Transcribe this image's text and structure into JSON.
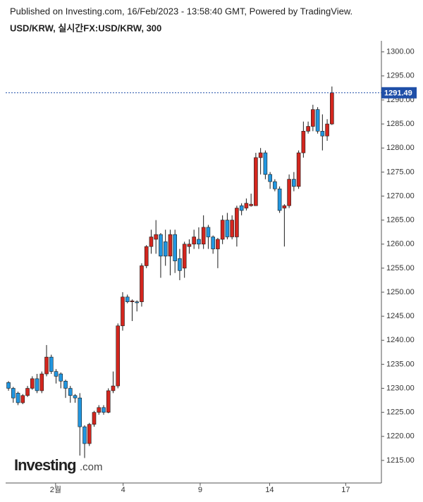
{
  "chart_data": {
    "type": "candlestick",
    "title": "Published on Investing.com, 16/Feb/2023 - 13:58:40 GMT, Powered by TradingView.",
    "subtitle": "USD/KRW, 실시간FX:USD/KRW, 300",
    "watermark": {
      "brand": "Investing",
      "suffix": ".com"
    },
    "up_color": "#d3261e",
    "down_color": "#2196e0",
    "outline_color": "#1a1a1a",
    "last_price": 1291.49,
    "last_price_color": "#1f4fa8",
    "x": [
      0,
      1,
      2,
      3,
      4,
      5,
      6,
      7,
      8,
      9,
      10,
      11,
      12,
      13,
      14,
      15,
      16,
      17,
      18,
      19,
      20,
      21,
      22,
      23,
      24,
      25,
      26,
      27,
      28,
      29,
      30,
      31,
      32,
      33,
      34,
      35,
      36,
      37,
      38,
      39,
      40,
      41,
      42,
      43,
      44,
      45,
      46,
      47,
      48,
      49,
      50,
      51,
      52,
      53,
      54,
      55,
      56,
      57,
      58,
      59,
      60,
      61,
      62,
      63,
      64,
      65,
      66,
      67,
      68
    ],
    "open": [
      1231.2,
      1230,
      1229,
      1227,
      1228.5,
      1230,
      1232,
      1229.5,
      1233,
      1236.5,
      1233.5,
      1233,
      1231.5,
      1230,
      1228.5,
      1228,
      1222,
      1218.5,
      1222.5,
      1225,
      1226,
      1225,
      1229.5,
      1230.5,
      1243,
      1249,
      1248,
      1248,
      1248,
      1255.5,
      1259.5,
      1261,
      1262,
      1260.5,
      1257.5,
      1262,
      1257,
      1255,
      1259.5,
      1260,
      1261,
      1260,
      1263.5,
      1261.5,
      1259,
      1261,
      1265,
      1261.5,
      1261.5,
      1268,
      1267.5,
      1268,
      1268,
      1278,
      1279,
      1274.5,
      1273,
      1271.5,
      1267.5,
      1268,
      1273.5,
      1272,
      1279,
      1283.5,
      1284.5,
      1288,
      1283.5,
      1282.5,
      1285
    ],
    "high": [
      1231.5,
      1230.3,
      1229.3,
      1228.8,
      1230.5,
      1232.5,
      1233,
      1233.5,
      1239,
      1237,
      1234,
      1233.3,
      1231.8,
      1230.5,
      1228.8,
      1229,
      1222.3,
      1222.8,
      1225.3,
      1226.5,
      1226.5,
      1230,
      1233.5,
      1243.5,
      1250,
      1249.5,
      1248.5,
      1248.3,
      1256,
      1259.8,
      1263,
      1265,
      1262.3,
      1263,
      1263,
      1263,
      1259,
      1260.5,
      1261,
      1263,
      1263.5,
      1266,
      1264,
      1261.8,
      1261.3,
      1266,
      1266.5,
      1266,
      1268,
      1268.5,
      1269.5,
      1270.5,
      1279,
      1280,
      1279.5,
      1275,
      1273.5,
      1272,
      1268.3,
      1274.5,
      1275,
      1279.5,
      1285.5,
      1285.5,
      1289,
      1288.5,
      1287,
      1286,
      1292.8
    ],
    "low": [
      1229.5,
      1227,
      1226.5,
      1226.7,
      1228.2,
      1229.7,
      1229,
      1229,
      1232.5,
      1233,
      1231,
      1230,
      1228,
      1227,
      1227,
      1216,
      1215.5,
      1218,
      1222,
      1224.5,
      1224.5,
      1224.8,
      1229,
      1230,
      1242,
      1247.7,
      1244,
      1246,
      1247,
      1255,
      1258,
      1258,
      1253,
      1255.5,
      1253.5,
      1254,
      1252.5,
      1253,
      1258,
      1259,
      1259,
      1259,
      1259,
      1258,
      1255,
      1260,
      1261,
      1261,
      1259.5,
      1266,
      1267,
      1267.8,
      1268,
      1274.5,
      1273.5,
      1271.5,
      1271,
      1266.5,
      1259.5,
      1267.5,
      1271,
      1271.5,
      1278,
      1283,
      1283.5,
      1283,
      1279.5,
      1281.5,
      1284.8
    ],
    "close": [
      1230,
      1228,
      1227,
      1228.5,
      1230,
      1232,
      1229.5,
      1233,
      1236.5,
      1233.5,
      1232.5,
      1231.5,
      1230,
      1228.5,
      1228,
      1222,
      1218.5,
      1222.5,
      1225,
      1226,
      1225,
      1229.5,
      1230.5,
      1243,
      1249,
      1248,
      1248.2,
      1247.8,
      1255.5,
      1259.5,
      1261.5,
      1262,
      1257.5,
      1257.5,
      1262,
      1256.5,
      1254.5,
      1260,
      1260,
      1261.5,
      1260,
      1263.5,
      1261.5,
      1259,
      1261,
      1265,
      1261.5,
      1265,
      1267.5,
      1267,
      1268.5,
      1268.3,
      1278,
      1279,
      1274.5,
      1273,
      1271.5,
      1267,
      1268,
      1273.5,
      1272,
      1279,
      1283.5,
      1284.5,
      1288,
      1283.5,
      1282.5,
      1285,
      1291.49
    ],
    "xlim": [
      -0.6,
      78.4
    ],
    "ylim": [
      1210.3,
      1302.3
    ],
    "xticks": [
      {
        "value": 9.9,
        "label": "2월"
      },
      {
        "value": 24.1,
        "label": "4"
      },
      {
        "value": 40.3,
        "label": "9"
      },
      {
        "value": 54.9,
        "label": "14"
      },
      {
        "value": 70.9,
        "label": "17"
      }
    ],
    "yticks": [
      {
        "value": 1215,
        "label": "1215.00"
      },
      {
        "value": 1220,
        "label": "1220.00"
      },
      {
        "value": 1225,
        "label": "1225.00"
      },
      {
        "value": 1230,
        "label": "1230.00"
      },
      {
        "value": 1235,
        "label": "1235.00"
      },
      {
        "value": 1240,
        "label": "1240.00"
      },
      {
        "value": 1245,
        "label": "1245.00"
      },
      {
        "value": 1250,
        "label": "1250.00"
      },
      {
        "value": 1255,
        "label": "1255.00"
      },
      {
        "value": 1260,
        "label": "1260.00"
      },
      {
        "value": 1265,
        "label": "1265.00"
      },
      {
        "value": 1270,
        "label": "1270.00"
      },
      {
        "value": 1275,
        "label": "1275.00"
      },
      {
        "value": 1280,
        "label": "1280.00"
      },
      {
        "value": 1285,
        "label": "1285.00"
      },
      {
        "value": 1290,
        "label": "1290.00"
      },
      {
        "value": 1295,
        "label": "1295.00"
      },
      {
        "value": 1300,
        "label": "1300.00"
      }
    ]
  }
}
